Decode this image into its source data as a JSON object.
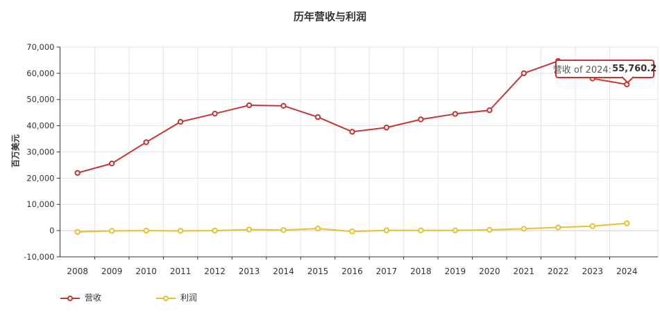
{
  "title": "历年营收与利润",
  "chart_data": {
    "type": "line",
    "title": "历年营收与利润",
    "xlabel": "",
    "ylabel": "百万美元",
    "ylim": [
      -10000,
      70000
    ],
    "ytick_step": 10000,
    "grid": true,
    "legend_position": "bottom-left",
    "categories": [
      "2008",
      "2009",
      "2010",
      "2011",
      "2012",
      "2013",
      "2014",
      "2015",
      "2016",
      "2017",
      "2018",
      "2019",
      "2020",
      "2021",
      "2022",
      "2023",
      "2024"
    ],
    "series": [
      {
        "key": "revenue",
        "name": "营收",
        "color": "#c23531",
        "values": [
          22000,
          25600,
          33700,
          41500,
          44600,
          47800,
          47600,
          43300,
          37700,
          39300,
          42400,
          44500,
          45900,
          60000,
          64700,
          58000,
          55760.2
        ]
      },
      {
        "key": "profit",
        "name": "利润",
        "color": "#e6c02e",
        "values": [
          -500,
          -100,
          0,
          -100,
          0,
          400,
          200,
          800,
          -300,
          100,
          100,
          100,
          300,
          700,
          1200,
          1700,
          2800
        ]
      }
    ],
    "tooltip": {
      "target_series": "营收",
      "target_year": "2024",
      "label": "营收 of 2024:",
      "value": "55,760.2"
    }
  }
}
